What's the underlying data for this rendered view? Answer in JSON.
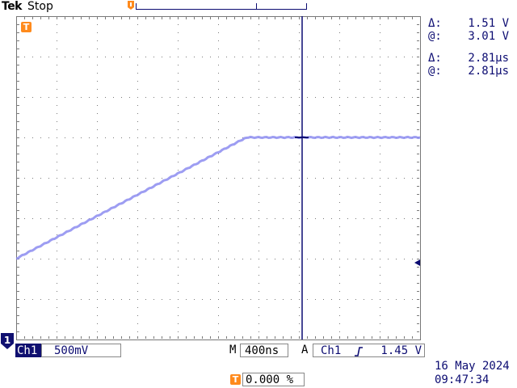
{
  "header": {
    "brand": "Tek",
    "status": "Stop"
  },
  "cursor_readout": {
    "v_delta_label": "Δ:",
    "v_delta_value": "1.51 V",
    "v_at_label": "@:",
    "v_at_value": "3.01 V",
    "t_delta_label": "Δ:",
    "t_delta_value": "2.81µs",
    "t_at_label": "@:",
    "t_at_value": "2.81µs"
  },
  "channel": {
    "marker": "1",
    "name": "Ch1",
    "scale": "500mV"
  },
  "timebase": {
    "mode": "M",
    "scale": "400ns"
  },
  "trigger": {
    "mode": "A",
    "source": "Ch1",
    "slope_icon": "rising-edge-icon",
    "level": "1.45 V",
    "marker_glyph": "T",
    "position": "0.000 %"
  },
  "datetime": {
    "date": "16 May 2024",
    "time": "09:47:34"
  },
  "colors": {
    "waveform": "#8c8cf0",
    "cursor": "#0c0c72",
    "grid_dot": "#7a7a7a",
    "trigger_marker": "#ff8a1c",
    "channel_marker": "#101070"
  },
  "waveform": {
    "description_points": [
      {
        "t_div": 0.0,
        "v_div": 2.0
      },
      {
        "t_div": 5.7,
        "v_div": 5.0
      },
      {
        "t_div": 10.0,
        "v_div": 5.0
      }
    ]
  }
}
